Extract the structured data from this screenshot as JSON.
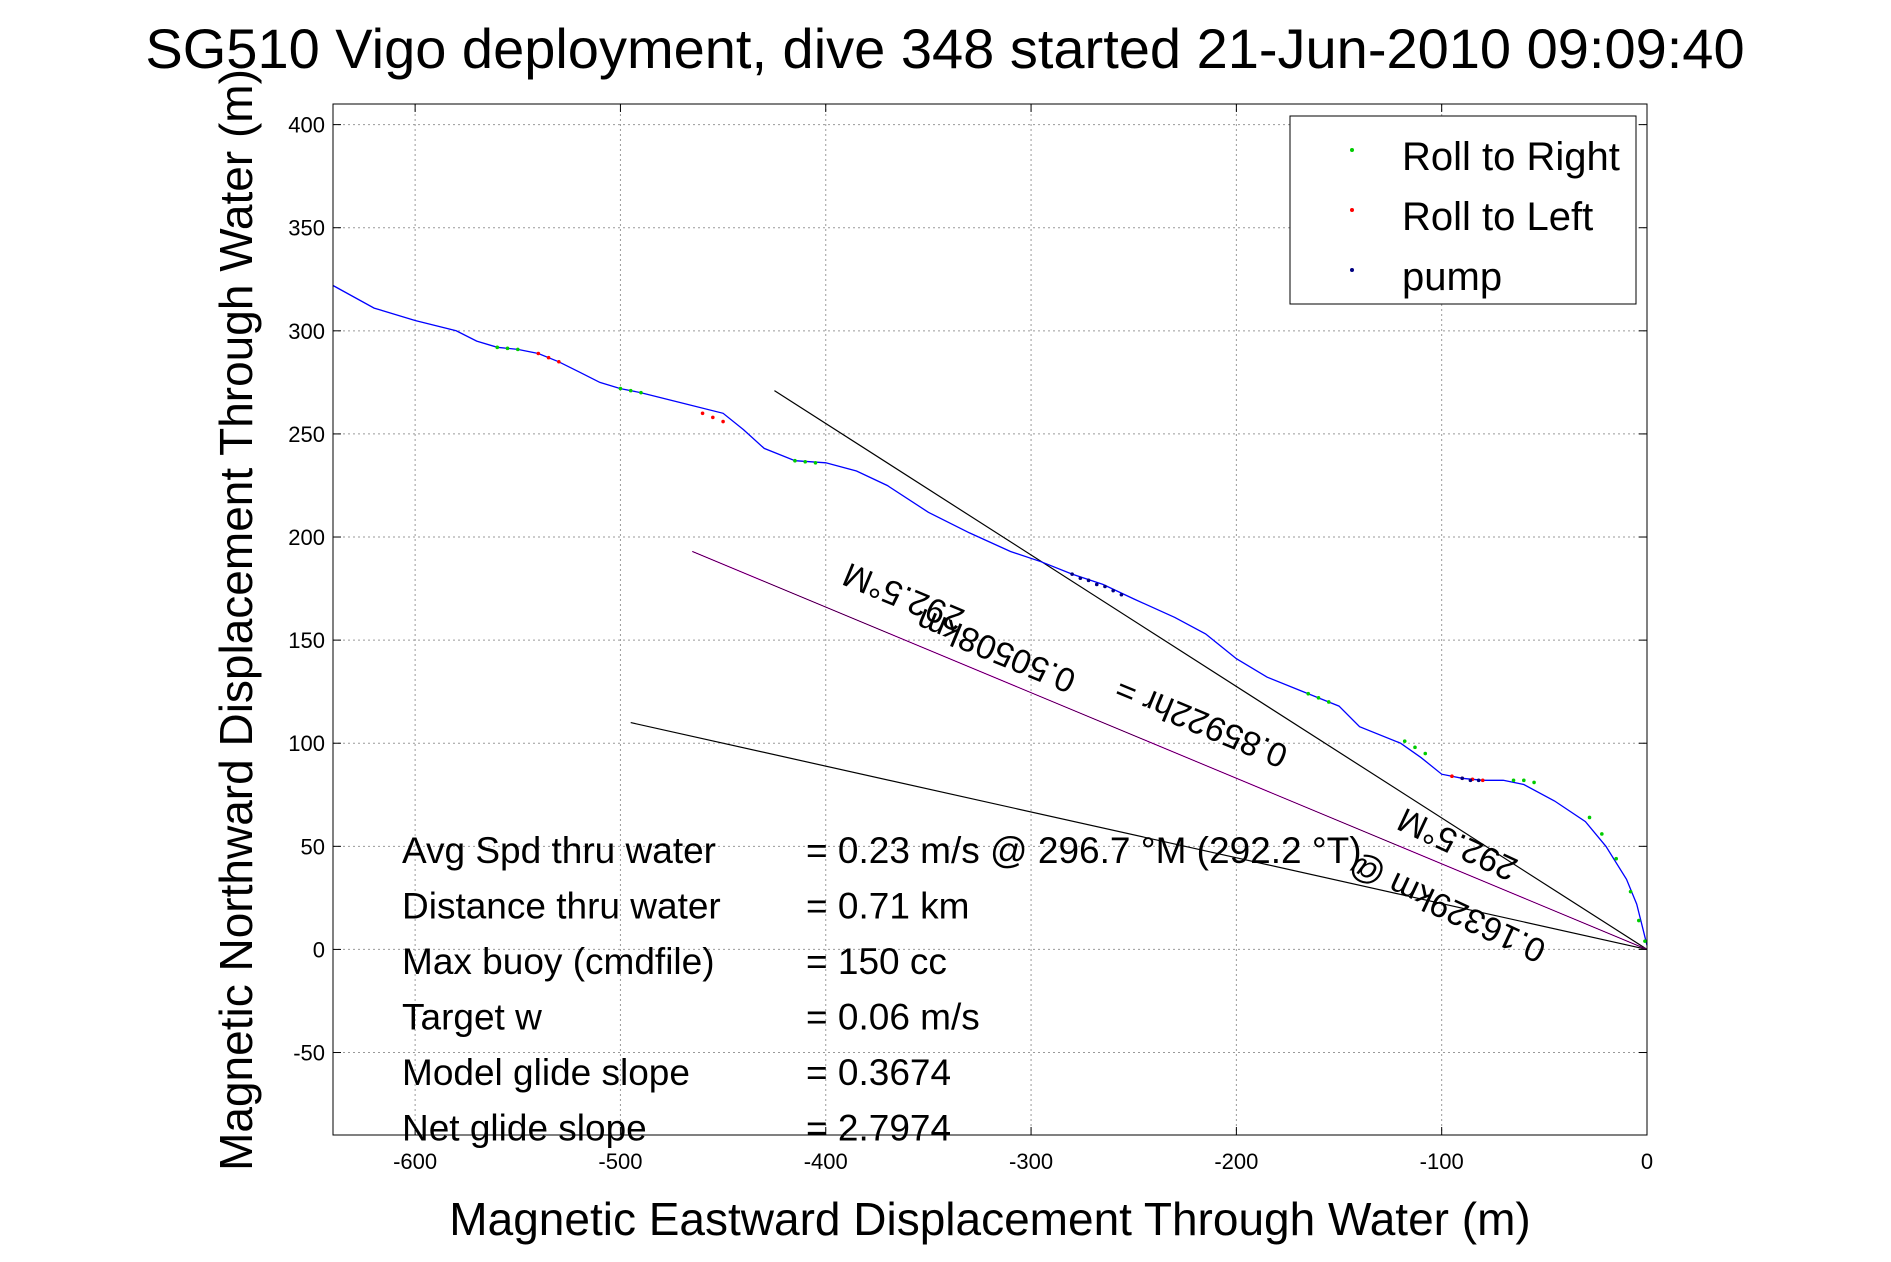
{
  "chart_data": {
    "type": "line",
    "title": "SG510 Vigo deployment, dive 348 started 21-Jun-2010 09:09:40",
    "xlabel": "Magnetic Eastward Displacement Through Water (m)",
    "ylabel": "Magnetic Northward Displacement Through Water (m)",
    "xlim": [
      -640,
      0
    ],
    "ylim": [
      -90,
      410
    ],
    "xticks": [
      -600,
      -500,
      -400,
      -300,
      -200,
      -100,
      0
    ],
    "yticks": [
      -50,
      0,
      50,
      100,
      150,
      200,
      250,
      300,
      350,
      400
    ],
    "grid": true,
    "legend_placement": "top-right",
    "track": {
      "x": [
        -640,
        -620,
        -600,
        -580,
        -570,
        -560,
        -550,
        -540,
        -530,
        -520,
        -510,
        -500,
        -490,
        -470,
        -450,
        -440,
        -430,
        -415,
        -400,
        -385,
        -370,
        -350,
        -330,
        -310,
        -295,
        -280,
        -265,
        -250,
        -230,
        -215,
        -200,
        -185,
        -170,
        -160,
        -150,
        -140,
        -120,
        -110,
        -100,
        -90,
        -80,
        -70,
        -60,
        -45,
        -30,
        -20,
        -10,
        -5,
        -2,
        0
      ],
      "y": [
        322,
        311,
        305,
        300,
        295,
        292,
        291,
        289,
        285,
        280,
        275,
        272,
        270,
        265,
        260,
        252,
        243,
        237,
        236,
        232,
        225,
        212,
        202,
        193,
        188,
        182,
        177,
        170,
        161,
        153,
        141,
        132,
        126,
        122,
        118,
        108,
        100,
        93,
        85,
        83,
        82,
        82,
        80,
        72,
        62,
        50,
        34,
        22,
        10,
        2
      ]
    },
    "series": [
      {
        "name": "Roll to Right",
        "color": "#00cc00",
        "x": [
          -560,
          -555,
          -550,
          -500,
          -495,
          -490,
          -415,
          -410,
          -405,
          -165,
          -160,
          -155,
          -118,
          -113,
          -108,
          -65,
          -60,
          -55,
          -28,
          -22,
          -15,
          -8,
          -4,
          -1
        ],
        "y": [
          292,
          291.5,
          291,
          272,
          271,
          270,
          237,
          236.5,
          236,
          124,
          122,
          120,
          101,
          98,
          95,
          82,
          82,
          81,
          64,
          56,
          44,
          28,
          14,
          4
        ]
      },
      {
        "name": "Roll to Left",
        "color": "#ff0000",
        "x": [
          -540,
          -535,
          -530,
          -460,
          -455,
          -450,
          -95,
          -90,
          -85,
          -80
        ],
        "y": [
          289,
          287,
          285,
          260,
          258,
          256,
          84,
          83,
          82.5,
          82
        ]
      },
      {
        "name": "pump",
        "color": "#000080",
        "x": [
          -280,
          -276,
          -272,
          -268,
          -264,
          -260,
          -256,
          -90,
          -86,
          -82
        ],
        "y": [
          182,
          180,
          179,
          177,
          176,
          174,
          172,
          83,
          82,
          82
        ]
      }
    ],
    "heading_lines": [
      {
        "color": "#000000",
        "x": [
          -425,
          0
        ],
        "y": [
          271,
          0
        ]
      },
      {
        "color": "#000000",
        "x": [
          -495,
          0
        ],
        "y": [
          110,
          0
        ]
      },
      {
        "color": "#ff00ff",
        "x": [
          -465,
          0
        ],
        "y": [
          193,
          0
        ]
      },
      {
        "color": "#000000",
        "x": [
          -465,
          0
        ],
        "y": [
          193,
          0
        ]
      }
    ],
    "annotations": [
      {
        "text": "292.5°M",
        "x": -360,
        "y": 176,
        "angle": -157.5
      },
      {
        "text": "0.50508km",
        "x": -315,
        "y": 150,
        "angle": -157.5
      },
      {
        "text": "0.85922hr =",
        "x": -215,
        "y": 115,
        "angle": -157.5
      },
      {
        "text": "292.5°M",
        "x": -90,
        "y": 56,
        "angle": -155
      },
      {
        "text": "0.16329km @",
        "x": -95,
        "y": 25,
        "angle": -155
      }
    ],
    "stats": [
      {
        "label": "Avg Spd thru water",
        "value": "=  0.23 m/s @ 296.7 °M (292.2 °T)"
      },
      {
        "label": "Distance thru water",
        "value": "=  0.71 km"
      },
      {
        "label": "Max buoy (cmdfile)",
        "value": "= 150 cc"
      },
      {
        "label": "Target w",
        "value": "= 0.06 m/s"
      },
      {
        "label": "Model glide slope",
        "value": "= 0.3674"
      },
      {
        "label": "Net glide slope",
        "value": "= 2.7974"
      }
    ],
    "track_color": "#0000ff"
  }
}
